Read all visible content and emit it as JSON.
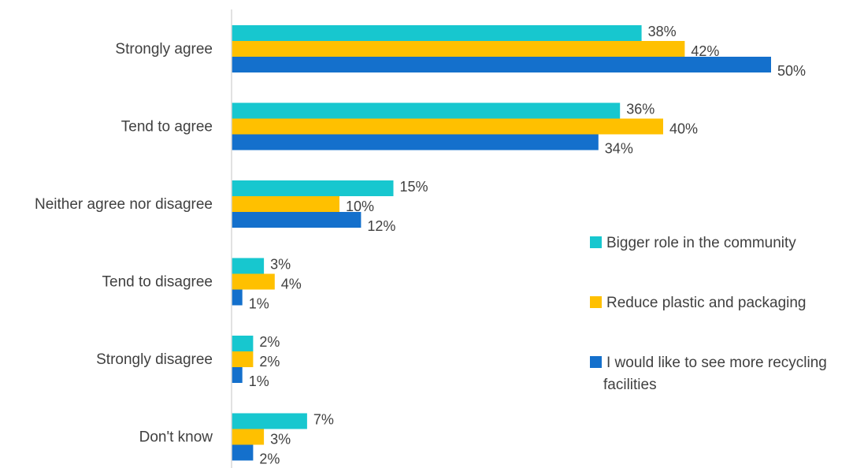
{
  "chart_data": {
    "type": "bar",
    "orientation": "horizontal",
    "categories": [
      "Strongly agree",
      "Tend to agree",
      "Neither agree nor disagree",
      "Tend to disagree",
      "Strongly disagree",
      "Don't know"
    ],
    "series": [
      {
        "name": "Bigger role in the community",
        "color": "#17c7cf",
        "values": [
          38,
          36,
          15,
          3,
          2,
          7
        ],
        "labels": [
          "38%",
          "36%",
          "15%",
          "3%",
          "2%",
          "7%"
        ]
      },
      {
        "name": "Reduce plastic and packaging",
        "color": "#ffc000",
        "values": [
          42,
          40,
          10,
          4,
          2,
          3
        ],
        "labels": [
          "42%",
          "40%",
          "10%",
          "4%",
          "2%",
          "3%"
        ]
      },
      {
        "name": "I would like to see more recycling facilities",
        "name_lines": [
          "I would like to see more recycling",
          "facilities"
        ],
        "color": "#1470cc",
        "values": [
          50,
          34,
          12,
          1,
          1,
          2
        ],
        "labels": [
          "50%",
          "34%",
          "12%",
          "1%",
          "1%",
          "2%"
        ]
      }
    ],
    "xlim": [
      0,
      55
    ],
    "unit": "%",
    "grid": false,
    "legend_position": "right",
    "title": "",
    "xlabel": "",
    "ylabel": ""
  }
}
